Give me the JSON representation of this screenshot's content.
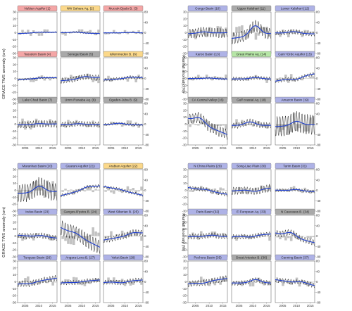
{
  "colors": {
    "red": "#f4a6a6",
    "orange": "#fbd88a",
    "blue": "#aeb2e6",
    "green": "#b6e6a6",
    "gray": "#a9a9a9",
    "trend": "#1f3fcf",
    "tws": "#111111",
    "rain": "#c2c2c2"
  },
  "axis_labels": {
    "left": "GRACE TWS anomaly (cm)",
    "right": "Rainfall anomaly (%)"
  },
  "year_ticks": [
    "2005",
    "2010",
    "2015"
  ],
  "chart_data": [
    {
      "type": "line",
      "block": "top-left",
      "ylim": [
        -30,
        30
      ],
      "y2lim": [
        -80,
        80
      ],
      "yticks": [
        -30,
        -20,
        -10,
        0,
        10,
        20,
        30
      ],
      "y2ticks": [
        -80,
        -40,
        0,
        40,
        80
      ],
      "x_range": [
        2002.3,
        2016.6
      ],
      "x_ticks": [
        2005,
        2010,
        2015
      ],
      "grid": false,
      "panels": [
        {
          "label": "Nubian Aquifer (1)",
          "color": "red"
        },
        {
          "label": "NW Sahara Aq. (2)",
          "color": "orange"
        },
        {
          "label": "Murzuk-Djado B. (3)",
          "color": "red"
        },
        {
          "label": "Taoudeni Basin (4)",
          "color": "red"
        },
        {
          "label": "Senegal Basin (5)",
          "color": "gray"
        },
        {
          "label": "Iullemmeden B. (6)",
          "color": "orange"
        },
        {
          "label": "Lake Chad Basin (7)",
          "color": "gray"
        },
        {
          "label": "Umm Ruwaba Aq. (8)",
          "color": "gray"
        },
        {
          "label": "Ogaden-Juba B. (9)",
          "color": "gray"
        }
      ]
    },
    {
      "type": "line",
      "block": "top-right",
      "ylim": [
        -30,
        30
      ],
      "y2lim": [
        -80,
        80
      ],
      "yticks": [
        -30,
        -20,
        -10,
        0,
        10,
        20,
        30
      ],
      "y2ticks": [
        -80,
        -40,
        0,
        40,
        80
      ],
      "x_range": [
        2002.3,
        2016.6
      ],
      "x_ticks": [
        2005,
        2010,
        2015
      ],
      "grid": false,
      "panels": [
        {
          "label": "Congo Basin (10)",
          "color": "blue"
        },
        {
          "label": "Upper Kalahari (11)",
          "color": "gray"
        },
        {
          "label": "Lower Kalahari (12)",
          "color": "blue"
        },
        {
          "label": "Karoo Basin (13)",
          "color": "blue"
        },
        {
          "label": "Great Plains Aq. (14)",
          "color": "green"
        },
        {
          "label": "Cam+Ordo Aquifer (15)",
          "color": "blue"
        },
        {
          "label": "CA Central Valley (16)",
          "color": "gray"
        },
        {
          "label": "Gulf coastal Aq. (18)",
          "color": "gray"
        },
        {
          "label": "Amazon Basin (19)",
          "color": "blue"
        }
      ]
    },
    {
      "type": "line",
      "block": "bottom-left",
      "ylim": [
        -30,
        30
      ],
      "y2lim": [
        -80,
        80
      ],
      "yticks": [
        -30,
        -20,
        -10,
        0,
        10,
        20,
        30
      ],
      "y2ticks": [
        -80,
        -40,
        0,
        40,
        80
      ],
      "x_range": [
        2002.3,
        2016.6
      ],
      "x_ticks": [
        2005,
        2010,
        2015
      ],
      "grid": false,
      "panels": [
        {
          "label": "Maranhao Basin (20)",
          "color": "blue"
        },
        {
          "label": "Guarani Aquifer (21)",
          "color": "blue"
        },
        {
          "label": "Arabian Aquifer (22)",
          "color": "orange"
        },
        {
          "label": "Indus Basin (23)",
          "color": "blue"
        },
        {
          "label": "Ganges-B'putra B. (24)",
          "color": "gray"
        },
        {
          "label": "West Siberian B. (25)",
          "color": "blue"
        },
        {
          "label": "Tunguss Basin (26)",
          "color": "blue"
        },
        {
          "label": "Angara-Lena B. (27)",
          "color": "blue"
        },
        {
          "label": "Yakut Basin (28)",
          "color": "blue"
        }
      ]
    },
    {
      "type": "line",
      "block": "bottom-right",
      "ylim": [
        -30,
        30
      ],
      "y2lim": [
        -80,
        80
      ],
      "yticks": [
        -30,
        -20,
        -10,
        0,
        10,
        20,
        30
      ],
      "y2ticks": [
        -80,
        -40,
        0,
        40,
        80
      ],
      "x_range": [
        2002.3,
        2016.6
      ],
      "x_ticks": [
        2005,
        2010,
        2015
      ],
      "grid": false,
      "panels": [
        {
          "label": "N China Plains (29)",
          "color": "blue"
        },
        {
          "label": "Song-Liao Plain (30)",
          "color": "blue"
        },
        {
          "label": "Tarim Basin (31)",
          "color": "blue"
        },
        {
          "label": "Paris Basin (32)",
          "color": "blue"
        },
        {
          "label": "E European Aq. (33)",
          "color": "blue"
        },
        {
          "label": "N Caucasus B. (34)",
          "color": "gray"
        },
        {
          "label": "Pechora Basin (35)",
          "color": "blue"
        },
        {
          "label": "Great Artesian B. (36)",
          "color": "gray"
        },
        {
          "label": "Canning Basin (37)",
          "color": "blue"
        }
      ]
    }
  ]
}
